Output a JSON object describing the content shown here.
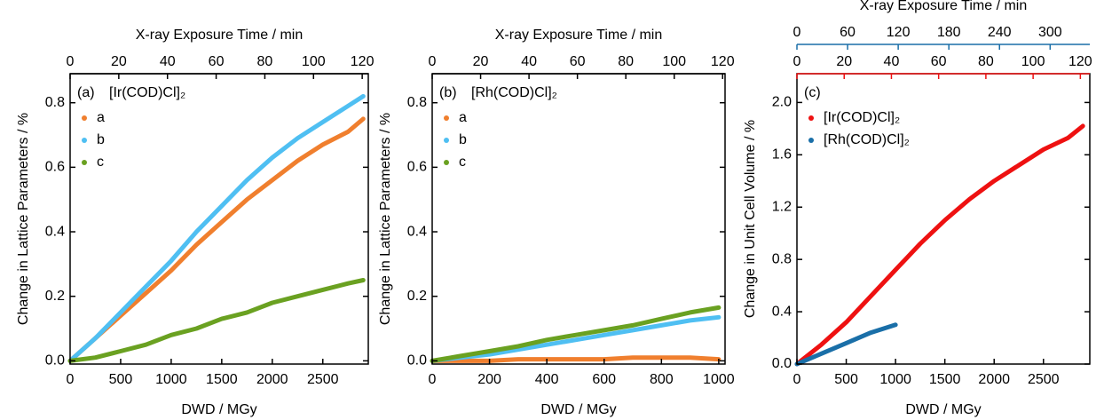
{
  "chart_data": [
    {
      "type": "line",
      "panel_label": "(a)",
      "title": "[Ir(COD)Cl]₂",
      "xlabel": "DWD / MGy",
      "ylabel": "Change in Lattice Parameters / %",
      "xlim": [
        0,
        2950
      ],
      "xticks": [
        0,
        500,
        1000,
        1500,
        2000,
        2500
      ],
      "ylim": [
        -0.01,
        0.89
      ],
      "yticks": [
        {
          "value": 0,
          "label": "0.0"
        },
        {
          "value": 0.2,
          "label": "0.2"
        },
        {
          "value": 0.4,
          "label": "0.4"
        },
        {
          "value": 0.6,
          "label": "0.6"
        },
        {
          "value": 0.8,
          "label": "0.8"
        }
      ],
      "top_label": "X-ray Exposure Time / min",
      "top_axes": [
        {
          "color": "#000000",
          "lim": [
            0,
            122.5
          ],
          "ticks": [
            0,
            20,
            40,
            60,
            80,
            100,
            120
          ]
        }
      ],
      "series": [
        {
          "name": "a",
          "color": "#f07f2e",
          "x": [
            0,
            250,
            500,
            750,
            1000,
            1250,
            1500,
            1750,
            2000,
            2250,
            2500,
            2750,
            2900
          ],
          "values": [
            0,
            0.07,
            0.14,
            0.21,
            0.28,
            0.36,
            0.43,
            0.5,
            0.56,
            0.62,
            0.67,
            0.71,
            0.75
          ]
        },
        {
          "name": "b",
          "color": "#4fbff2",
          "x": [
            0,
            250,
            500,
            750,
            1000,
            1250,
            1500,
            1750,
            2000,
            2250,
            2500,
            2750,
            2900
          ],
          "values": [
            0,
            0.07,
            0.15,
            0.23,
            0.31,
            0.4,
            0.48,
            0.56,
            0.63,
            0.69,
            0.74,
            0.79,
            0.82
          ]
        },
        {
          "name": "c",
          "color": "#6aa121",
          "x": [
            0,
            250,
            500,
            750,
            1000,
            1250,
            1500,
            1750,
            2000,
            2250,
            2500,
            2750,
            2900
          ],
          "values": [
            0,
            0.01,
            0.03,
            0.05,
            0.08,
            0.1,
            0.13,
            0.15,
            0.18,
            0.2,
            0.22,
            0.24,
            0.25
          ]
        }
      ]
    },
    {
      "type": "line",
      "panel_label": "(b)",
      "title": "[Rh(COD)Cl]₂",
      "xlabel": "DWD / MGy",
      "ylabel": "Change in Lattice Parameters / %",
      "xlim": [
        0,
        1022
      ],
      "xticks": [
        0,
        200,
        400,
        600,
        800,
        1000
      ],
      "ylim": [
        -0.01,
        0.89
      ],
      "yticks": [
        {
          "value": 0,
          "label": "0.0"
        },
        {
          "value": 0.2,
          "label": "0.2"
        },
        {
          "value": 0.4,
          "label": "0.4"
        },
        {
          "value": 0.6,
          "label": "0.6"
        },
        {
          "value": 0.8,
          "label": "0.8"
        }
      ],
      "top_label": "X-ray Exposure Time / min",
      "top_axes": [
        {
          "color": "#000000",
          "lim": [
            0,
            121
          ],
          "ticks": [
            0,
            20,
            40,
            60,
            80,
            100,
            120
          ]
        }
      ],
      "series": [
        {
          "name": "a",
          "color": "#f07f2e",
          "x": [
            0,
            100,
            200,
            300,
            400,
            500,
            600,
            700,
            800,
            900,
            1000
          ],
          "values": [
            0,
            0,
            0,
            0.005,
            0.005,
            0.005,
            0.005,
            0.01,
            0.01,
            0.01,
            0.005
          ]
        },
        {
          "name": "b",
          "color": "#4fbff2",
          "x": [
            0,
            100,
            200,
            300,
            400,
            500,
            600,
            700,
            800,
            900,
            1000
          ],
          "values": [
            0,
            0.01,
            0.02,
            0.035,
            0.05,
            0.065,
            0.08,
            0.095,
            0.11,
            0.125,
            0.135
          ]
        },
        {
          "name": "c",
          "color": "#6aa121",
          "x": [
            0,
            100,
            200,
            300,
            400,
            500,
            600,
            700,
            800,
            900,
            1000
          ],
          "values": [
            0,
            0.015,
            0.03,
            0.045,
            0.065,
            0.08,
            0.095,
            0.11,
            0.13,
            0.15,
            0.165
          ]
        }
      ]
    },
    {
      "type": "line",
      "panel_label": "(c)",
      "xlabel": "DWD / MGy",
      "ylabel": "Change in Unit Cell Volume / %",
      "xlim": [
        0,
        2970
      ],
      "xticks": [
        0,
        500,
        1000,
        1500,
        2000,
        2500
      ],
      "ylim": [
        0,
        2.22
      ],
      "yticks": [
        {
          "value": 0,
          "label": "0.0"
        },
        {
          "value": 0.4,
          "label": "0.4"
        },
        {
          "value": 0.8,
          "label": "0.8"
        },
        {
          "value": 1.2,
          "label": "1.2"
        },
        {
          "value": 1.6,
          "label": "1.6"
        },
        {
          "value": 2.0,
          "label": "2.0"
        }
      ],
      "top_label": "X-ray Exposure Time / min",
      "top_axes": [
        {
          "color": "#ee1111",
          "lim": [
            0,
            124
          ],
          "ticks": [
            0,
            20,
            40,
            60,
            80,
            100,
            120
          ]
        },
        {
          "color": "#1a6fa8",
          "lim": [
            0,
            347
          ],
          "ticks": [
            0,
            60,
            120,
            180,
            240,
            300
          ]
        }
      ],
      "series": [
        {
          "name": "[Ir(COD)Cl]₂",
          "color": "#ee1111",
          "x": [
            0,
            250,
            500,
            750,
            1000,
            1250,
            1500,
            1750,
            2000,
            2250,
            2500,
            2750,
            2900
          ],
          "values": [
            0,
            0.15,
            0.32,
            0.52,
            0.72,
            0.92,
            1.1,
            1.26,
            1.4,
            1.52,
            1.64,
            1.73,
            1.82
          ]
        },
        {
          "name": "[Rh(COD)Cl]₂",
          "color": "#1a6fa8",
          "x": [
            0,
            250,
            500,
            750,
            1000
          ],
          "values": [
            0,
            0.08,
            0.16,
            0.24,
            0.3
          ]
        }
      ]
    }
  ]
}
